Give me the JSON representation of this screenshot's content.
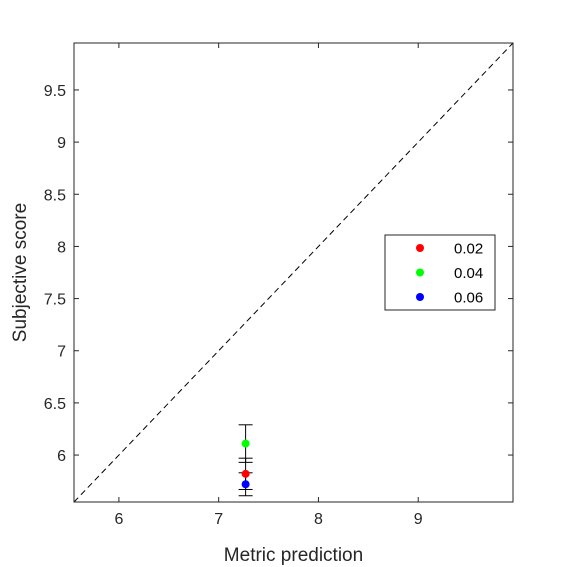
{
  "chart_data": {
    "type": "scatter",
    "xlabel": "Metric prediction",
    "ylabel": "Subjective score",
    "xlim": [
      5.55,
      9.95
    ],
    "ylim": [
      5.55,
      9.95
    ],
    "x_ticks": [
      6,
      7,
      8,
      9
    ],
    "x_tick_labels": [
      "6",
      "7",
      "8",
      "9"
    ],
    "y_ticks": [
      6,
      6.5,
      7,
      7.5,
      8,
      8.5,
      9,
      9.5
    ],
    "y_tick_labels": [
      "6",
      "6.5",
      "7",
      "7.5",
      "8",
      "8.5",
      "9",
      "9.5"
    ],
    "grid": false,
    "reference_line": "y = x (dashed)",
    "legend_position": "right",
    "series": [
      {
        "name": "0.02",
        "color": "#ff0000",
        "x": [
          7.27
        ],
        "y": [
          5.82
        ],
        "err": [
          0.15
        ]
      },
      {
        "name": "0.04",
        "color": "#00ff00",
        "x": [
          7.27
        ],
        "y": [
          6.11
        ],
        "err": [
          0.18
        ]
      },
      {
        "name": "0.06",
        "color": "#0000ff",
        "x": [
          7.27
        ],
        "y": [
          5.72
        ],
        "err": [
          0.11
        ]
      }
    ]
  }
}
